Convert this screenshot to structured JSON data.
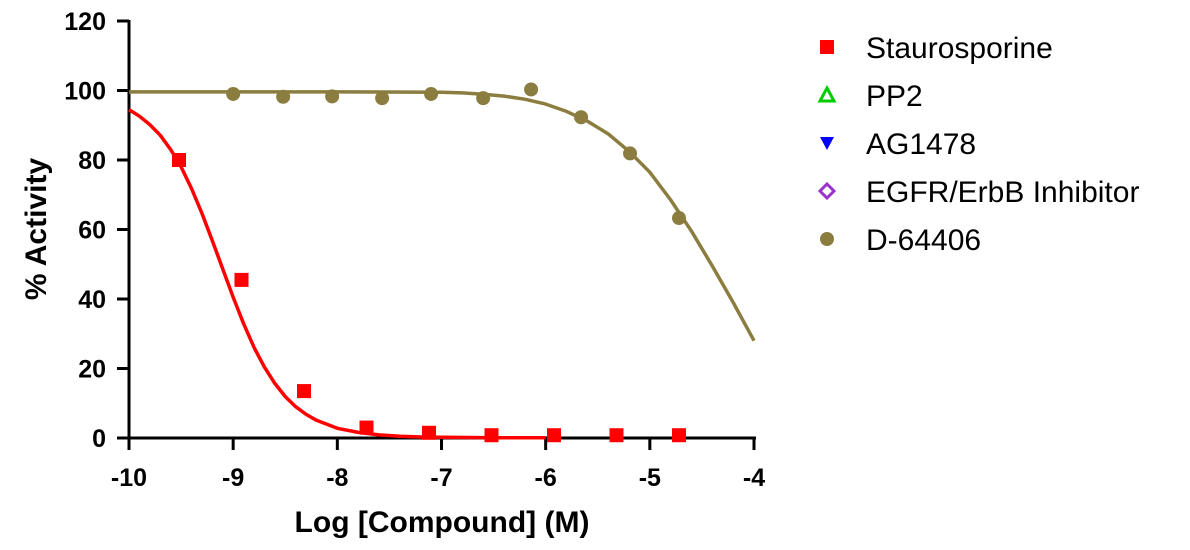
{
  "chart_data": {
    "type": "scatter",
    "xlabel": "Log [Compound] (M)",
    "ylabel": "% Activity",
    "xlim": [
      -10,
      -4
    ],
    "ylim": [
      0,
      120
    ],
    "x_ticks": [
      "-10",
      "-9",
      "-8",
      "-7",
      "-6",
      "-5",
      "-4"
    ],
    "y_ticks": [
      "0",
      "20",
      "40",
      "60",
      "80",
      "100",
      "120"
    ],
    "grid": false,
    "legend_position": "right",
    "series": [
      {
        "name": "Staurosporine",
        "marker": "square",
        "color": "#ff0000",
        "points": [
          {
            "x": -9.52,
            "y": 80
          },
          {
            "x": -8.92,
            "y": 45.5
          },
          {
            "x": -8.32,
            "y": 13.5
          },
          {
            "x": -7.72,
            "y": 3
          },
          {
            "x": -7.12,
            "y": 1.5
          },
          {
            "x": -6.52,
            "y": 0.8
          },
          {
            "x": -5.92,
            "y": 0.8
          },
          {
            "x": -5.32,
            "y": 0.8
          },
          {
            "x": -4.72,
            "y": 0.8
          }
        ],
        "curve": [
          {
            "x": -10,
            "y": 94.5
          },
          {
            "x": -9.9,
            "y": 92.6
          },
          {
            "x": -9.8,
            "y": 90.2
          },
          {
            "x": -9.7,
            "y": 87.1
          },
          {
            "x": -9.6,
            "y": 83
          },
          {
            "x": -9.5,
            "y": 78
          },
          {
            "x": -9.4,
            "y": 71.8
          },
          {
            "x": -9.3,
            "y": 64.7
          },
          {
            "x": -9.2,
            "y": 56.8
          },
          {
            "x": -9.1,
            "y": 48.6
          },
          {
            "x": -9.0,
            "y": 40.5
          },
          {
            "x": -8.9,
            "y": 32.9
          },
          {
            "x": -8.8,
            "y": 26.1
          },
          {
            "x": -8.7,
            "y": 20.4
          },
          {
            "x": -8.6,
            "y": 15.7
          },
          {
            "x": -8.5,
            "y": 11.9
          },
          {
            "x": -8.4,
            "y": 9.0
          },
          {
            "x": -8.3,
            "y": 6.8
          },
          {
            "x": -8.2,
            "y": 5.1
          },
          {
            "x": -8.0,
            "y": 2.8
          },
          {
            "x": -7.8,
            "y": 1.6
          },
          {
            "x": -7.6,
            "y": 0.9
          },
          {
            "x": -7.4,
            "y": 0.5
          },
          {
            "x": -7.2,
            "y": 0.3
          },
          {
            "x": -7.0,
            "y": 0.2
          },
          {
            "x": -6.5,
            "y": 0.1
          },
          {
            "x": -6.0,
            "y": 0.1
          }
        ]
      },
      {
        "name": "PP2",
        "marker": "triangle-up-open",
        "color": "#00cc00",
        "points": []
      },
      {
        "name": "AG1478",
        "marker": "triangle-down",
        "color": "#0000ff",
        "points": []
      },
      {
        "name": "EGFR/ErbB Inhibitor",
        "marker": "diamond-open",
        "color": "#9933cc",
        "points": []
      },
      {
        "name": "D-64406",
        "marker": "circle",
        "color": "#8b7d3f",
        "points": [
          {
            "x": -9.0,
            "y": 99
          },
          {
            "x": -8.52,
            "y": 98.2
          },
          {
            "x": -8.05,
            "y": 98.3
          },
          {
            "x": -7.57,
            "y": 97.8
          },
          {
            "x": -7.1,
            "y": 99
          },
          {
            "x": -6.6,
            "y": 97.8
          },
          {
            "x": -6.14,
            "y": 100.3
          },
          {
            "x": -5.66,
            "y": 92.3
          },
          {
            "x": -5.19,
            "y": 81.9
          },
          {
            "x": -4.72,
            "y": 63.3
          }
        ],
        "curve": [
          {
            "x": -10,
            "y": 99.6
          },
          {
            "x": -9.0,
            "y": 99.6
          },
          {
            "x": -8.0,
            "y": 99.6
          },
          {
            "x": -7.0,
            "y": 99.5
          },
          {
            "x": -6.8,
            "y": 99.3
          },
          {
            "x": -6.6,
            "y": 98.9
          },
          {
            "x": -6.4,
            "y": 98.4
          },
          {
            "x": -6.2,
            "y": 97.5
          },
          {
            "x": -6.0,
            "y": 96.1
          },
          {
            "x": -5.8,
            "y": 94.0
          },
          {
            "x": -5.6,
            "y": 91.2
          },
          {
            "x": -5.4,
            "y": 87.5
          },
          {
            "x": -5.2,
            "y": 82.5
          },
          {
            "x": -5.0,
            "y": 76.5
          },
          {
            "x": -4.8,
            "y": 68.5
          },
          {
            "x": -4.6,
            "y": 59.5
          },
          {
            "x": -4.4,
            "y": 49.5
          },
          {
            "x": -4.2,
            "y": 39.0
          },
          {
            "x": -4.0,
            "y": 28.0
          }
        ]
      }
    ]
  }
}
